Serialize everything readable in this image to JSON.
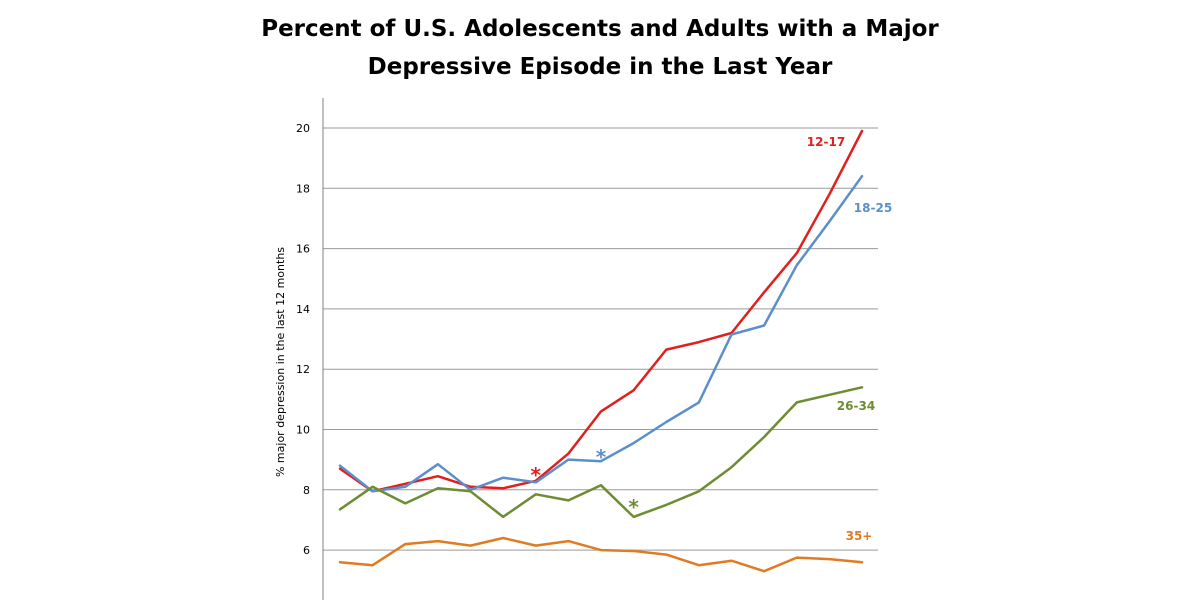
{
  "chart_data": {
    "type": "line",
    "title_lines": [
      "Percent of U.S. Adolescents and Adults with a Major",
      "Depressive Episode in the Last Year"
    ],
    "ylabel": "% major depression in the last 12 months",
    "xlabel": "",
    "ylim": [
      5,
      21
    ],
    "yticks": [
      6,
      8,
      10,
      12,
      14,
      16,
      18,
      20
    ],
    "grid": true,
    "x_points": 17,
    "series": [
      {
        "name": "12-17",
        "color": "#e0201e",
        "values": [
          8.7,
          7.95,
          8.2,
          8.45,
          8.1,
          8.05,
          8.3,
          9.2,
          10.6,
          11.3,
          12.65,
          12.9,
          13.2,
          14.55,
          15.85,
          17.8,
          19.9
        ]
      },
      {
        "name": "18-25",
        "color": "#5b8fcc",
        "values": [
          8.8,
          7.95,
          8.1,
          8.85,
          8.0,
          8.4,
          8.25,
          9.0,
          8.95,
          9.55,
          10.25,
          10.9,
          13.15,
          13.45,
          15.45,
          16.9,
          18.4
        ]
      },
      {
        "name": "26-34",
        "color": "#6e8c32",
        "values": [
          7.35,
          8.1,
          7.55,
          8.05,
          7.95,
          7.1,
          7.85,
          7.65,
          8.15,
          7.1,
          7.5,
          7.95,
          8.75,
          9.75,
          10.9,
          11.15,
          11.4
        ]
      },
      {
        "name": "35+",
        "color": "#e07b22",
        "values": [
          5.6,
          5.5,
          6.2,
          6.3,
          6.15,
          6.4,
          6.15,
          6.3,
          6.0,
          5.97,
          5.85,
          5.5,
          5.65,
          5.3,
          5.75,
          5.7,
          5.6
        ]
      }
    ],
    "annotations": [
      {
        "text": "*",
        "color": "#e0201e",
        "at_index": 6,
        "at_value": 8.65
      },
      {
        "text": "*",
        "color": "#5b8fcc",
        "at_index": 8,
        "at_value": 9.25
      },
      {
        "text": "*",
        "color": "#6e8c32",
        "at_index": 9,
        "at_value": 7.6
      }
    ]
  }
}
